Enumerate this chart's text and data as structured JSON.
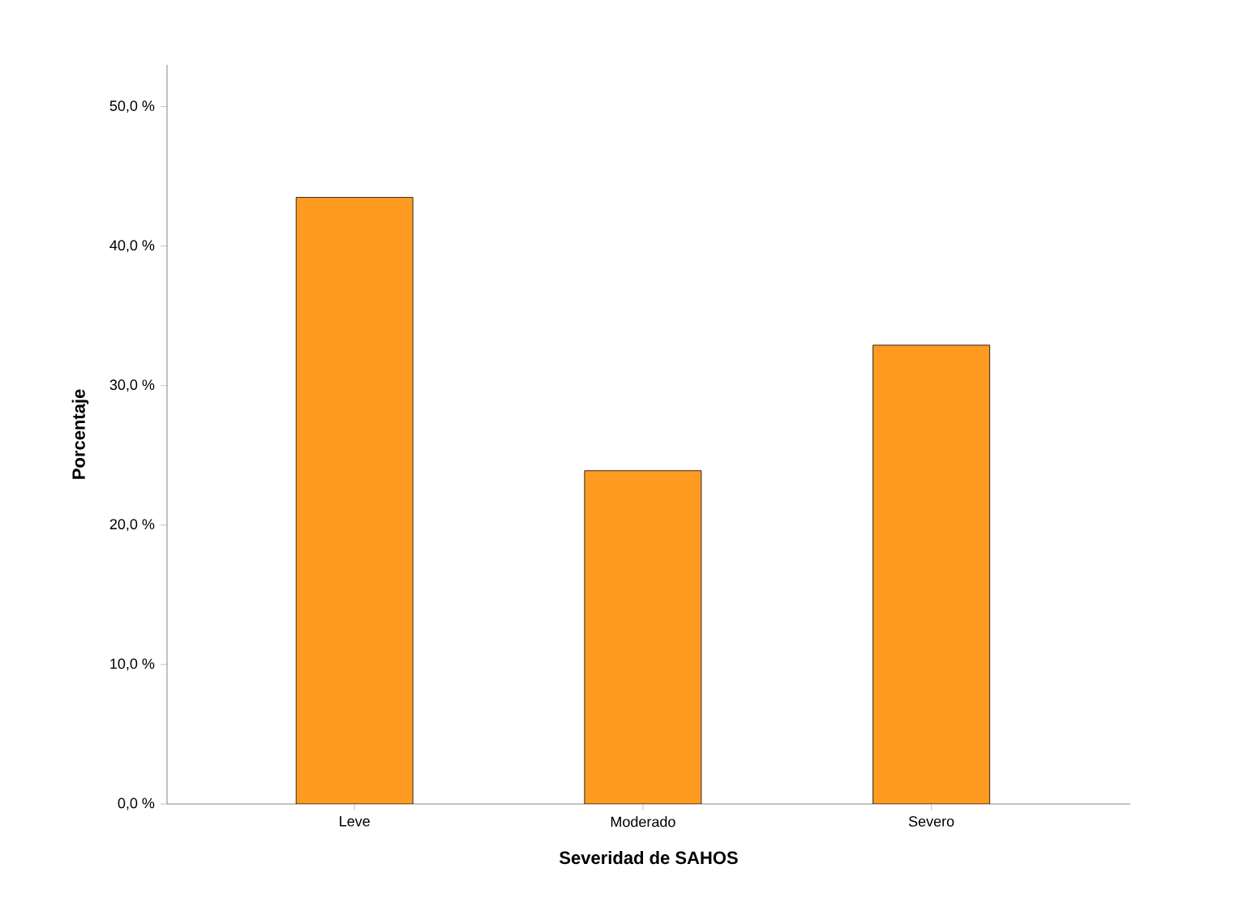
{
  "chart_data": {
    "type": "bar",
    "xlabel": "Severidad de SAHOS",
    "ylabel": "Porcentaje",
    "categories": [
      "Leve",
      "Moderado",
      "Severo"
    ],
    "values": [
      43.5,
      23.9,
      32.9
    ],
    "color": "#ff9b21",
    "ylim": [
      0,
      53
    ],
    "yticks": [
      {
        "value": 0,
        "label": "0,0 %"
      },
      {
        "value": 10,
        "label": "10,0 %"
      },
      {
        "value": 20,
        "label": "20,0 %"
      },
      {
        "value": 30,
        "label": "30,0 %"
      },
      {
        "value": 40,
        "label": "40,0 %"
      },
      {
        "value": 50,
        "label": "50,0 %"
      }
    ],
    "grid": false
  }
}
